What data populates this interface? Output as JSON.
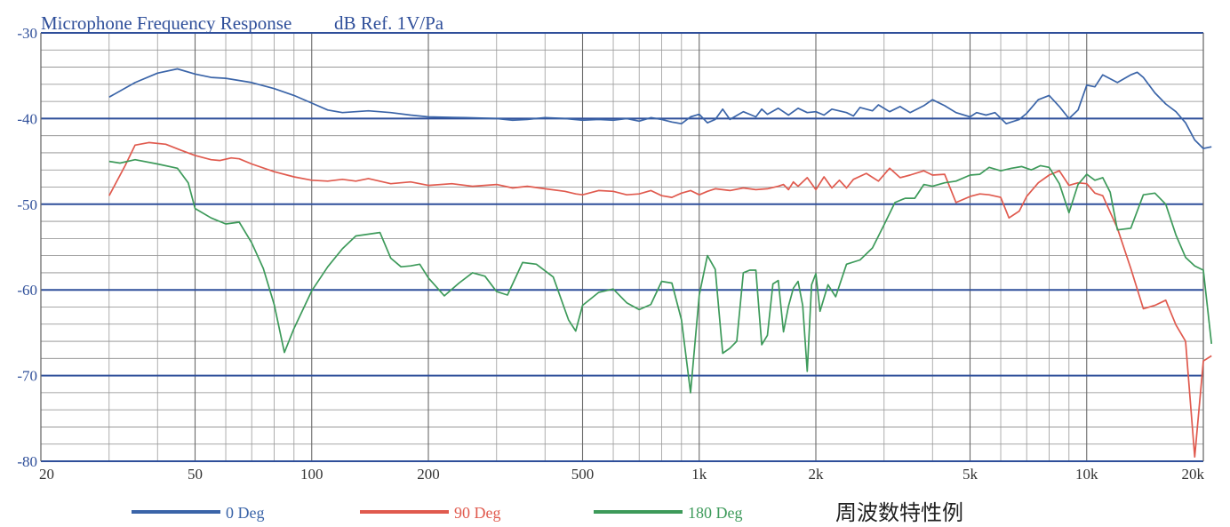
{
  "chart_data": {
    "type": "line",
    "title": "Microphone Frequency Response",
    "subtitle": "dB Ref. 1V/Pa",
    "xlabel": "",
    "ylabel": "",
    "x_scale": "log",
    "xlim": [
      20,
      20000
    ],
    "ylim": [
      -80,
      -30
    ],
    "grid": true,
    "legend_position": "bottom",
    "x_tick_labels": [
      {
        "value": 20,
        "label": "20"
      },
      {
        "value": 50,
        "label": "50"
      },
      {
        "value": 100,
        "label": "100"
      },
      {
        "value": 200,
        "label": "200"
      },
      {
        "value": 500,
        "label": "500"
      },
      {
        "value": 1000,
        "label": "1k"
      },
      {
        "value": 2000,
        "label": "2k"
      },
      {
        "value": 5000,
        "label": "5k"
      },
      {
        "value": 10000,
        "label": "10k"
      },
      {
        "value": 20000,
        "label": "20k"
      }
    ],
    "y_tick_labels": [
      {
        "value": -30,
        "label": "-30"
      },
      {
        "value": -40,
        "label": "-40"
      },
      {
        "value": -50,
        "label": "-50"
      },
      {
        "value": -60,
        "label": "-60"
      },
      {
        "value": -70,
        "label": "-70"
      },
      {
        "value": -80,
        "label": "-80"
      }
    ],
    "series": [
      {
        "name": "0 Deg",
        "color": "#3a64a8",
        "points": [
          [
            30,
            -37.5
          ],
          [
            35,
            -35.8
          ],
          [
            40,
            -34.7
          ],
          [
            45,
            -34.2
          ],
          [
            50,
            -34.8
          ],
          [
            55,
            -35.2
          ],
          [
            60,
            -35.3
          ],
          [
            70,
            -35.8
          ],
          [
            80,
            -36.5
          ],
          [
            90,
            -37.3
          ],
          [
            100,
            -38.2
          ],
          [
            110,
            -39
          ],
          [
            120,
            -39.3
          ],
          [
            140,
            -39.1
          ],
          [
            160,
            -39.3
          ],
          [
            180,
            -39.6
          ],
          [
            200,
            -39.8
          ],
          [
            250,
            -39.9
          ],
          [
            300,
            -40
          ],
          [
            330,
            -40.2
          ],
          [
            360,
            -40.1
          ],
          [
            400,
            -39.9
          ],
          [
            450,
            -40
          ],
          [
            500,
            -40.2
          ],
          [
            550,
            -40.1
          ],
          [
            600,
            -40.2
          ],
          [
            650,
            -40
          ],
          [
            700,
            -40.3
          ],
          [
            750,
            -39.9
          ],
          [
            800,
            -40.1
          ],
          [
            850,
            -40.4
          ],
          [
            900,
            -40.6
          ],
          [
            950,
            -39.8
          ],
          [
            1000,
            -39.5
          ],
          [
            1050,
            -40.5
          ],
          [
            1100,
            -40.1
          ],
          [
            1150,
            -38.9
          ],
          [
            1200,
            -40.1
          ],
          [
            1300,
            -39.2
          ],
          [
            1400,
            -39.8
          ],
          [
            1450,
            -38.9
          ],
          [
            1500,
            -39.5
          ],
          [
            1600,
            -38.8
          ],
          [
            1700,
            -39.6
          ],
          [
            1800,
            -38.8
          ],
          [
            1900,
            -39.3
          ],
          [
            2000,
            -39.2
          ],
          [
            2100,
            -39.6
          ],
          [
            2200,
            -38.9
          ],
          [
            2400,
            -39.3
          ],
          [
            2500,
            -39.7
          ],
          [
            2600,
            -38.7
          ],
          [
            2800,
            -39.1
          ],
          [
            2900,
            -38.4
          ],
          [
            3100,
            -39.2
          ],
          [
            3300,
            -38.6
          ],
          [
            3500,
            -39.3
          ],
          [
            3800,
            -38.5
          ],
          [
            4000,
            -37.8
          ],
          [
            4300,
            -38.5
          ],
          [
            4600,
            -39.3
          ],
          [
            5000,
            -39.8
          ],
          [
            5200,
            -39.3
          ],
          [
            5500,
            -39.6
          ],
          [
            5800,
            -39.3
          ],
          [
            6200,
            -40.6
          ],
          [
            6700,
            -40.1
          ],
          [
            7000,
            -39.4
          ],
          [
            7500,
            -37.8
          ],
          [
            8000,
            -37.3
          ],
          [
            8500,
            -38.6
          ],
          [
            9000,
            -40
          ],
          [
            9500,
            -39
          ],
          [
            10000,
            -36.1
          ],
          [
            10500,
            -36.3
          ],
          [
            11000,
            -34.9
          ],
          [
            12000,
            -35.8
          ],
          [
            13000,
            -34.9
          ],
          [
            13500,
            -34.6
          ],
          [
            14000,
            -35.2
          ],
          [
            15000,
            -37
          ],
          [
            16000,
            -38.3
          ],
          [
            17000,
            -39.2
          ],
          [
            18000,
            -40.5
          ],
          [
            19000,
            -42.5
          ],
          [
            20000,
            -43.5
          ],
          [
            21000,
            -43.3
          ]
        ]
      },
      {
        "name": "90 Deg",
        "color": "#e05a4e",
        "points": [
          [
            30,
            -49
          ],
          [
            33,
            -45.5
          ],
          [
            35,
            -43.1
          ],
          [
            38,
            -42.8
          ],
          [
            42,
            -43
          ],
          [
            46,
            -43.7
          ],
          [
            50,
            -44.3
          ],
          [
            55,
            -44.8
          ],
          [
            58,
            -44.9
          ],
          [
            62,
            -44.6
          ],
          [
            65,
            -44.7
          ],
          [
            70,
            -45.3
          ],
          [
            80,
            -46.2
          ],
          [
            90,
            -46.8
          ],
          [
            100,
            -47.2
          ],
          [
            110,
            -47.3
          ],
          [
            120,
            -47.1
          ],
          [
            130,
            -47.3
          ],
          [
            140,
            -47
          ],
          [
            160,
            -47.6
          ],
          [
            180,
            -47.4
          ],
          [
            200,
            -47.8
          ],
          [
            230,
            -47.6
          ],
          [
            260,
            -47.9
          ],
          [
            300,
            -47.7
          ],
          [
            330,
            -48.1
          ],
          [
            360,
            -47.9
          ],
          [
            400,
            -48.2
          ],
          [
            450,
            -48.5
          ],
          [
            480,
            -48.8
          ],
          [
            500,
            -48.9
          ],
          [
            550,
            -48.4
          ],
          [
            600,
            -48.5
          ],
          [
            650,
            -48.9
          ],
          [
            700,
            -48.8
          ],
          [
            750,
            -48.4
          ],
          [
            800,
            -49
          ],
          [
            850,
            -49.2
          ],
          [
            900,
            -48.7
          ],
          [
            950,
            -48.4
          ],
          [
            1000,
            -48.9
          ],
          [
            1050,
            -48.5
          ],
          [
            1100,
            -48.2
          ],
          [
            1200,
            -48.4
          ],
          [
            1300,
            -48.1
          ],
          [
            1400,
            -48.3
          ],
          [
            1500,
            -48.2
          ],
          [
            1600,
            -47.9
          ],
          [
            1650,
            -47.7
          ],
          [
            1700,
            -48.3
          ],
          [
            1750,
            -47.4
          ],
          [
            1800,
            -47.9
          ],
          [
            1900,
            -46.9
          ],
          [
            2000,
            -48.3
          ],
          [
            2100,
            -46.8
          ],
          [
            2200,
            -48.1
          ],
          [
            2300,
            -47.2
          ],
          [
            2400,
            -48.1
          ],
          [
            2500,
            -47.1
          ],
          [
            2700,
            -46.4
          ],
          [
            2900,
            -47.3
          ],
          [
            3100,
            -45.8
          ],
          [
            3300,
            -46.9
          ],
          [
            3500,
            -46.6
          ],
          [
            3800,
            -46.1
          ],
          [
            4000,
            -46.6
          ],
          [
            4300,
            -46.5
          ],
          [
            4600,
            -49.8
          ],
          [
            5000,
            -49.1
          ],
          [
            5300,
            -48.8
          ],
          [
            5600,
            -48.9
          ],
          [
            6000,
            -49.2
          ],
          [
            6300,
            -51.6
          ],
          [
            6700,
            -50.8
          ],
          [
            7000,
            -49.1
          ],
          [
            7500,
            -47.5
          ],
          [
            8000,
            -46.6
          ],
          [
            8500,
            -46.1
          ],
          [
            9000,
            -47.8
          ],
          [
            9500,
            -47.5
          ],
          [
            10000,
            -47.6
          ],
          [
            10500,
            -48.7
          ],
          [
            11000,
            -49
          ],
          [
            12000,
            -52.8
          ],
          [
            13000,
            -57.5
          ],
          [
            14000,
            -62.2
          ],
          [
            15000,
            -61.8
          ],
          [
            16000,
            -61.2
          ],
          [
            17000,
            -64.1
          ],
          [
            18000,
            -66
          ],
          [
            19000,
            -79.5
          ],
          [
            20000,
            -68.3
          ],
          [
            21000,
            -67.7
          ]
        ]
      },
      {
        "name": "180 Deg",
        "color": "#3d9a5a",
        "points": [
          [
            30,
            -45
          ],
          [
            32,
            -45.2
          ],
          [
            35,
            -44.8
          ],
          [
            40,
            -45.3
          ],
          [
            45,
            -45.8
          ],
          [
            48,
            -47.5
          ],
          [
            50,
            -50.5
          ],
          [
            55,
            -51.6
          ],
          [
            60,
            -52.3
          ],
          [
            65,
            -52.1
          ],
          [
            70,
            -54.5
          ],
          [
            75,
            -57.5
          ],
          [
            80,
            -61.7
          ],
          [
            85,
            -67.3
          ],
          [
            90,
            -64.5
          ],
          [
            100,
            -60.1
          ],
          [
            110,
            -57.3
          ],
          [
            120,
            -55.2
          ],
          [
            130,
            -53.7
          ],
          [
            140,
            -53.5
          ],
          [
            150,
            -53.3
          ],
          [
            160,
            -56.3
          ],
          [
            170,
            -57.3
          ],
          [
            180,
            -57.2
          ],
          [
            190,
            -57
          ],
          [
            200,
            -58.6
          ],
          [
            220,
            -60.7
          ],
          [
            240,
            -59.2
          ],
          [
            260,
            -58
          ],
          [
            280,
            -58.4
          ],
          [
            300,
            -60.2
          ],
          [
            320,
            -60.6
          ],
          [
            350,
            -56.8
          ],
          [
            380,
            -57
          ],
          [
            420,
            -58.5
          ],
          [
            460,
            -63.5
          ],
          [
            480,
            -64.8
          ],
          [
            500,
            -61.8
          ],
          [
            550,
            -60.3
          ],
          [
            600,
            -59.9
          ],
          [
            650,
            -61.5
          ],
          [
            700,
            -62.3
          ],
          [
            750,
            -61.7
          ],
          [
            800,
            -59
          ],
          [
            850,
            -59.2
          ],
          [
            900,
            -63.5
          ],
          [
            950,
            -72
          ],
          [
            1000,
            -60.6
          ],
          [
            1050,
            -56
          ],
          [
            1100,
            -57.6
          ],
          [
            1150,
            -67.4
          ],
          [
            1200,
            -66.8
          ],
          [
            1250,
            -66
          ],
          [
            1300,
            -58
          ],
          [
            1350,
            -57.7
          ],
          [
            1400,
            -57.7
          ],
          [
            1450,
            -66.4
          ],
          [
            1500,
            -65.3
          ],
          [
            1550,
            -59.3
          ],
          [
            1600,
            -58.9
          ],
          [
            1650,
            -64.9
          ],
          [
            1700,
            -61.9
          ],
          [
            1750,
            -59.8
          ],
          [
            1800,
            -59
          ],
          [
            1850,
            -61.8
          ],
          [
            1900,
            -69.5
          ],
          [
            1950,
            -59.4
          ],
          [
            2000,
            -58.1
          ],
          [
            2050,
            -62.5
          ],
          [
            2150,
            -59.4
          ],
          [
            2250,
            -60.8
          ],
          [
            2400,
            -57
          ],
          [
            2600,
            -56.5
          ],
          [
            2800,
            -55.1
          ],
          [
            3000,
            -52.4
          ],
          [
            3200,
            -49.8
          ],
          [
            3400,
            -49.3
          ],
          [
            3600,
            -49.3
          ],
          [
            3800,
            -47.7
          ],
          [
            4000,
            -47.9
          ],
          [
            4300,
            -47.5
          ],
          [
            4600,
            -47.3
          ],
          [
            5000,
            -46.6
          ],
          [
            5300,
            -46.5
          ],
          [
            5600,
            -45.7
          ],
          [
            6000,
            -46.1
          ],
          [
            6400,
            -45.8
          ],
          [
            6800,
            -45.6
          ],
          [
            7200,
            -46
          ],
          [
            7600,
            -45.5
          ],
          [
            8000,
            -45.7
          ],
          [
            8500,
            -47.6
          ],
          [
            9000,
            -51
          ],
          [
            9500,
            -47.7
          ],
          [
            10000,
            -46.5
          ],
          [
            10500,
            -47.2
          ],
          [
            11000,
            -46.9
          ],
          [
            11500,
            -48.6
          ],
          [
            12000,
            -53
          ],
          [
            13000,
            -52.8
          ],
          [
            14000,
            -48.9
          ],
          [
            15000,
            -48.7
          ],
          [
            16000,
            -50
          ],
          [
            17000,
            -53.6
          ],
          [
            18000,
            -56.2
          ],
          [
            19000,
            -57.2
          ],
          [
            20000,
            -57.7
          ],
          [
            21000,
            -66.3
          ]
        ]
      }
    ]
  },
  "legend": {
    "items": [
      {
        "label": "0 Deg",
        "color": "#3a64a8"
      },
      {
        "label": "90 Deg",
        "color": "#e05a4e"
      },
      {
        "label": "180 Deg",
        "color": "#3d9a5a"
      }
    ]
  },
  "caption": "周波数特性例"
}
